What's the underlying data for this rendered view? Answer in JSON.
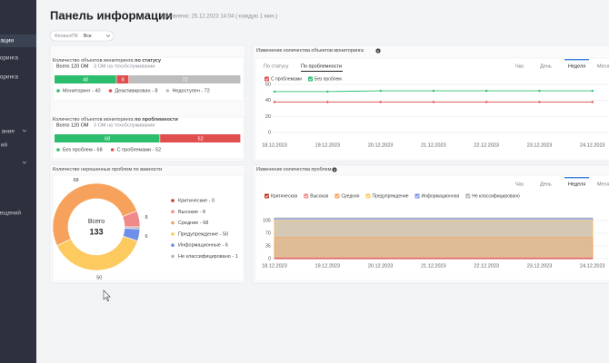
{
  "sidebar": {
    "items": [
      "ации",
      "оринга",
      "оринга",
      "ание",
      "ий",
      "ещений"
    ]
  },
  "header": {
    "title": "Панель информации",
    "updated": "Обновлено: 25.12.2023 14:04 (-каждую 1 мин.)"
  },
  "filter": {
    "label": "Филиал/ПК",
    "value": "Все"
  },
  "chart_data": [
    {
      "type": "bar",
      "orientation": "horizontal",
      "stacked": true,
      "title": "Количество объектов мониторинга",
      "title_bold": "по статусу",
      "total": "Всего 120 ОМ",
      "note": "3 ОМ на техобслуживании",
      "xlim": [
        0,
        120
      ],
      "series": [
        {
          "name": "Мониторинг - 40",
          "color": "#2dbd6e",
          "values": [
            40
          ]
        },
        {
          "name": "Деактивирован - 8",
          "color": "#e04e4e",
          "values": [
            8
          ]
        },
        {
          "name": "Недоступен - 72",
          "color": "#bdbdbd",
          "values": [
            72
          ]
        }
      ]
    },
    {
      "type": "bar",
      "orientation": "horizontal",
      "stacked": true,
      "title": "Количество объектов мониторинга",
      "title_bold": "по проблемности",
      "total": "Всего 120 ОМ",
      "note": "3 ОМ на техобслуживании",
      "xlim": [
        0,
        120
      ],
      "series": [
        {
          "name": "Без проблем - 68",
          "color": "#2dbd6e",
          "values": [
            68
          ]
        },
        {
          "name": "С проблемами - 52",
          "color": "#e04e4e",
          "values": [
            52
          ]
        }
      ]
    },
    {
      "type": "pie",
      "donut": true,
      "title": "Количество нерешенных проблем по важности",
      "center_label": "Всего",
      "center_value": 133,
      "start_angle": 90,
      "direction": "counterclockwise",
      "categories": [
        "Критические - 0",
        "Высокие - 8",
        "Средние - 68",
        "Предупреждение - 50",
        "Информационные - 6",
        "Не классифицировано - 1"
      ],
      "values": [
        0,
        8,
        68,
        50,
        6,
        1
      ],
      "value_labels": [
        null,
        "8",
        "68",
        "50",
        "6",
        null
      ],
      "colors": [
        "#c0392b",
        "#f08a8a",
        "#f7a25c",
        "#fcca5e",
        "#6f8fe8",
        "#b5b5b5"
      ]
    },
    {
      "type": "line",
      "title": "Изменение количества объектов мониторинга",
      "tabs": [
        "По статусу",
        "По проблемности"
      ],
      "active_tab": 1,
      "periods": [
        "Час",
        "День",
        "Неделя",
        "Месяц"
      ],
      "active_period": 2,
      "categories": [
        "18.12.2023",
        "19.12.2023",
        "20.12.2023",
        "21.12.2023",
        "22.12.2023",
        "23.12.2023",
        "24.12.2023"
      ],
      "series": [
        {
          "name": "С проблемами",
          "color": "#e04e4e",
          "values": [
            38,
            38,
            38,
            38,
            38,
            38,
            38
          ]
        },
        {
          "name": "Без проблем",
          "color": "#2dbd6e",
          "values": [
            51,
            51,
            52,
            52,
            52,
            52,
            52
          ]
        }
      ],
      "ylim": [
        0,
        60
      ],
      "yticks": [
        0,
        20,
        40,
        60
      ],
      "grid": true
    },
    {
      "type": "area",
      "title": "Изменение количества проблем",
      "periods": [
        "Час",
        "День",
        "Неделя",
        "Месяц"
      ],
      "active_period": 2,
      "categories": [
        "18.12.2023",
        "19.12.2023",
        "20.12.2023",
        "21.12.2023",
        "22.12.2023",
        "23.12.2023",
        "24.12.2023"
      ],
      "series": [
        {
          "name": "Критическая",
          "color": "#c0392b",
          "values": [
            0,
            0,
            0,
            0,
            0,
            0,
            0
          ]
        },
        {
          "name": "Высокая",
          "color": "#f08a8a",
          "values": [
            2,
            2,
            2,
            2,
            2,
            2,
            2
          ]
        },
        {
          "name": "Средняя",
          "color": "#f7a25c",
          "values": [
            58,
            58,
            58,
            58,
            58,
            58,
            58
          ]
        },
        {
          "name": "Предупреждение",
          "color": "#fcca5e",
          "values": [
            105,
            105,
            105,
            105,
            105,
            105,
            105
          ]
        },
        {
          "name": "Информационная",
          "color": "#7b93e6",
          "values": [
            110,
            110,
            110,
            110,
            110,
            110,
            110
          ]
        },
        {
          "name": "Не классифицировано",
          "color": "#b5b5b5",
          "values": [
            112,
            112,
            112,
            112,
            112,
            112,
            112
          ]
        }
      ],
      "ylim": [
        0,
        120
      ],
      "yticks": [
        0,
        35,
        70,
        105
      ],
      "grid": true
    }
  ]
}
